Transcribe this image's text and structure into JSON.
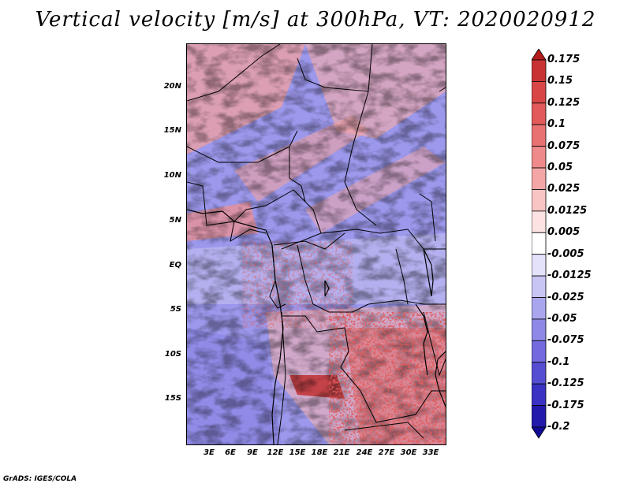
{
  "title": "Vertical velocity [m/s] at 300hPa, VT: 2020020912",
  "credit": "GrADS: IGES/COLA",
  "map": {
    "lat_labels": [
      "20N",
      "15N",
      "10N",
      "5N",
      "EQ",
      "5S",
      "10S",
      "15S"
    ],
    "lon_labels": [
      "3E",
      "6E",
      "9E",
      "12E",
      "15E",
      "18E",
      "21E",
      "24E",
      "27E",
      "30E",
      "33E"
    ]
  },
  "colorbar": {
    "labels": [
      "0.175",
      "0.15",
      "0.125",
      "0.1",
      "0.075",
      "0.05",
      "0.025",
      "0.0125",
      "0.005",
      "-0.005",
      "-0.0125",
      "-0.025",
      "-0.05",
      "-0.075",
      "-0.1",
      "-0.125",
      "-0.175",
      "-0.2"
    ],
    "colors": [
      "#b41c1c",
      "#c83232",
      "#d84646",
      "#e25a5a",
      "#e87272",
      "#ee8a8a",
      "#f4a6a6",
      "#f8c4c4",
      "#fce2e2",
      "#ffffff",
      "#e4e2fa",
      "#c8c4f4",
      "#aaa6ee",
      "#8e88e6",
      "#726ade",
      "#564ed2",
      "#3a32c2",
      "#221aaa",
      "#120a96"
    ]
  }
}
